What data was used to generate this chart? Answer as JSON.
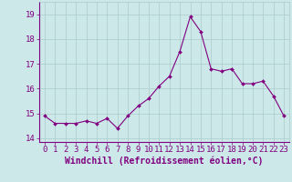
{
  "x": [
    0,
    1,
    2,
    3,
    4,
    5,
    6,
    7,
    8,
    9,
    10,
    11,
    12,
    13,
    14,
    15,
    16,
    17,
    18,
    19,
    20,
    21,
    22,
    23
  ],
  "y": [
    14.9,
    14.6,
    14.6,
    14.6,
    14.7,
    14.6,
    14.8,
    14.4,
    14.9,
    15.3,
    15.6,
    16.1,
    16.5,
    17.5,
    18.9,
    18.3,
    16.8,
    16.7,
    16.8,
    16.2,
    16.2,
    16.3,
    15.7,
    14.9
  ],
  "xlabel": "Windchill (Refroidissement éolien,°C)",
  "xlim": [
    -0.5,
    23.5
  ],
  "ylim": [
    13.85,
    19.5
  ],
  "yticks": [
    14,
    15,
    16,
    17,
    18,
    19
  ],
  "xticks": [
    0,
    1,
    2,
    3,
    4,
    5,
    6,
    7,
    8,
    9,
    10,
    11,
    12,
    13,
    14,
    15,
    16,
    17,
    18,
    19,
    20,
    21,
    22,
    23
  ],
  "line_color": "#800080",
  "marker_color": "#800080",
  "bg_color": "#cce8e8",
  "grid_color": "#aacccc",
  "tick_color": "#800080",
  "label_color": "#800080",
  "font_size": 6.5,
  "xlabel_fontsize": 7.0
}
